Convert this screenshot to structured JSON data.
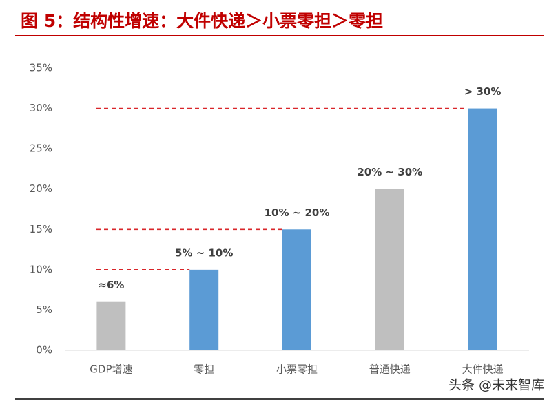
{
  "chart_data": {
    "type": "bar",
    "title": "图 5：结构性增速：大件快递＞小票零担＞零担",
    "categories": [
      "GDP增速",
      "零担",
      "小票零担",
      "普通快递",
      "大件快递"
    ],
    "values": [
      6,
      10,
      15,
      20,
      30
    ],
    "value_labels": [
      "≈6%",
      "5% ~ 10%",
      "10% ~ 20%",
      "20% ~ 30%",
      "> 30%"
    ],
    "colors": [
      "#bfbfbf",
      "#5b9bd5",
      "#5b9bd5",
      "#bfbfbf",
      "#5b9bd5"
    ],
    "ylim": [
      0,
      35
    ],
    "yticks": [
      {
        "value": 0,
        "label": "0%"
      },
      {
        "value": 5,
        "label": "5%"
      },
      {
        "value": 10,
        "label": "10%"
      },
      {
        "value": 15,
        "label": "15%"
      },
      {
        "value": 20,
        "label": "20%"
      },
      {
        "value": 25,
        "label": "25%"
      },
      {
        "value": 30,
        "label": "30%"
      },
      {
        "value": 35,
        "label": "35%"
      }
    ],
    "grid": false,
    "watermark": "头条 @未来智库"
  }
}
